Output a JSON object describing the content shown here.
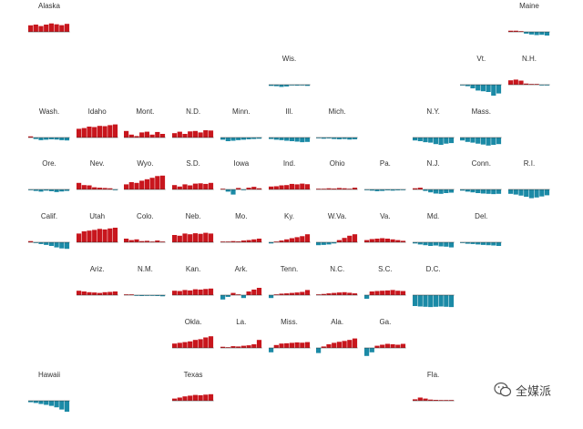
{
  "watermark": {
    "text": "全媒派",
    "icon": "wechat-icon"
  },
  "chart_data": {
    "type": "bar",
    "layout": "tile-grid small multiples",
    "colors": {
      "positive": "#c8161d",
      "negative": "#1b8aa6",
      "baseline": "#333333"
    },
    "states": [
      {
        "label": "Alaska",
        "row": 0,
        "col": 0,
        "values": [
          0.45,
          0.5,
          0.4,
          0.5,
          0.58,
          0.52,
          0.46,
          0.55
        ]
      },
      {
        "label": "Maine",
        "row": 0,
        "col": 10,
        "values": [
          0.08,
          0.08,
          0.02,
          -0.12,
          -0.18,
          -0.22,
          -0.2,
          -0.25
        ]
      },
      {
        "label": "Wis.",
        "row": 1,
        "col": 5,
        "values": [
          -0.08,
          -0.1,
          -0.15,
          -0.12,
          -0.05,
          -0.06,
          -0.04,
          -0.08
        ]
      },
      {
        "label": "Vt.",
        "row": 1,
        "col": 9,
        "values": [
          -0.05,
          -0.1,
          -0.25,
          -0.4,
          -0.45,
          -0.5,
          -0.75,
          -0.6
        ]
      },
      {
        "label": "N.H.",
        "row": 1,
        "col": 10,
        "values": [
          0.3,
          0.35,
          0.28,
          0.08,
          0.05,
          0.03,
          -0.02,
          -0.04
        ]
      },
      {
        "label": "Wash.",
        "row": 2,
        "col": 0,
        "values": [
          0.08,
          -0.1,
          -0.18,
          -0.15,
          -0.12,
          -0.14,
          -0.18,
          -0.2
        ]
      },
      {
        "label": "Idaho",
        "row": 2,
        "col": 1,
        "values": [
          0.6,
          0.65,
          0.75,
          0.72,
          0.8,
          0.78,
          0.85,
          0.9
        ]
      },
      {
        "label": "Mont.",
        "row": 2,
        "col": 2,
        "values": [
          0.45,
          0.2,
          0.1,
          0.35,
          0.4,
          0.2,
          0.38,
          0.25
        ]
      },
      {
        "label": "N.D.",
        "row": 2,
        "col": 3,
        "values": [
          0.3,
          0.4,
          0.25,
          0.42,
          0.45,
          0.35,
          0.5,
          0.48
        ]
      },
      {
        "label": "Minn.",
        "row": 2,
        "col": 4,
        "values": [
          -0.15,
          -0.25,
          -0.22,
          -0.18,
          -0.15,
          -0.12,
          -0.1,
          -0.08
        ]
      },
      {
        "label": "Ill.",
        "row": 2,
        "col": 5,
        "values": [
          -0.1,
          -0.15,
          -0.18,
          -0.22,
          -0.25,
          -0.28,
          -0.32,
          -0.3
        ]
      },
      {
        "label": "Mich.",
        "row": 2,
        "col": 6,
        "values": [
          -0.05,
          -0.08,
          -0.06,
          -0.1,
          -0.12,
          -0.1,
          -0.14,
          -0.12
        ]
      },
      {
        "label": "N.Y.",
        "row": 2,
        "col": 8,
        "values": [
          -0.2,
          -0.25,
          -0.32,
          -0.35,
          -0.45,
          -0.5,
          -0.42,
          -0.38
        ]
      },
      {
        "label": "Mass.",
        "row": 2,
        "col": 9,
        "values": [
          -0.2,
          -0.3,
          -0.35,
          -0.42,
          -0.48,
          -0.55,
          -0.5,
          -0.45
        ]
      },
      {
        "label": "Ore.",
        "row": 3,
        "col": 0,
        "values": [
          -0.05,
          -0.1,
          -0.15,
          -0.08,
          -0.12,
          -0.18,
          -0.14,
          -0.1
        ]
      },
      {
        "label": "Nev.",
        "row": 3,
        "col": 1,
        "values": [
          0.45,
          0.3,
          0.28,
          0.15,
          0.12,
          0.1,
          0.08,
          -0.05
        ]
      },
      {
        "label": "Wyo.",
        "row": 3,
        "col": 2,
        "values": [
          0.35,
          0.5,
          0.45,
          0.6,
          0.7,
          0.8,
          0.92,
          0.95
        ]
      },
      {
        "label": "S.D.",
        "row": 3,
        "col": 3,
        "values": [
          0.3,
          0.2,
          0.35,
          0.28,
          0.4,
          0.42,
          0.38,
          0.45
        ]
      },
      {
        "label": "Iowa",
        "row": 3,
        "col": 4,
        "values": [
          0.05,
          -0.15,
          -0.35,
          0.1,
          -0.05,
          0.12,
          0.18,
          0.08
        ]
      },
      {
        "label": "Ind.",
        "row": 3,
        "col": 5,
        "values": [
          0.2,
          0.22,
          0.28,
          0.3,
          0.38,
          0.35,
          0.4,
          0.36
        ]
      },
      {
        "label": "Ohio",
        "row": 3,
        "col": 6,
        "values": [
          0.02,
          0.05,
          0.08,
          0.06,
          0.1,
          0.08,
          0.05,
          0.12
        ]
      },
      {
        "label": "Pa.",
        "row": 3,
        "col": 7,
        "values": [
          -0.05,
          -0.08,
          -0.12,
          -0.1,
          -0.06,
          -0.08,
          -0.06,
          -0.05
        ]
      },
      {
        "label": "N.J.",
        "row": 3,
        "col": 8,
        "values": [
          0.08,
          0.12,
          -0.1,
          -0.2,
          -0.28,
          -0.3,
          -0.25,
          -0.22
        ]
      },
      {
        "label": "Conn.",
        "row": 3,
        "col": 9,
        "values": [
          -0.08,
          -0.15,
          -0.2,
          -0.25,
          -0.28,
          -0.3,
          -0.32,
          -0.3
        ]
      },
      {
        "label": "R.I.",
        "row": 3,
        "col": 10,
        "values": [
          -0.3,
          -0.35,
          -0.42,
          -0.5,
          -0.6,
          -0.55,
          -0.48,
          -0.4
        ]
      },
      {
        "label": "Calif.",
        "row": 4,
        "col": 0,
        "values": [
          0.08,
          -0.05,
          -0.12,
          -0.18,
          -0.25,
          -0.35,
          -0.42,
          -0.45
        ]
      },
      {
        "label": "Utah",
        "row": 4,
        "col": 1,
        "values": [
          0.6,
          0.75,
          0.8,
          0.85,
          0.92,
          0.88,
          0.95,
          1.0
        ]
      },
      {
        "label": "Colo.",
        "row": 4,
        "col": 2,
        "values": [
          0.25,
          0.15,
          0.2,
          0.08,
          0.1,
          0.05,
          0.12,
          0.02
        ]
      },
      {
        "label": "Neb.",
        "row": 4,
        "col": 3,
        "values": [
          0.5,
          0.45,
          0.6,
          0.55,
          0.62,
          0.58,
          0.65,
          0.6
        ]
      },
      {
        "label": "Mo.",
        "row": 4,
        "col": 4,
        "values": [
          0.02,
          0.05,
          0.08,
          0.06,
          0.12,
          0.15,
          0.2,
          0.25
        ]
      },
      {
        "label": "Ky.",
        "row": 4,
        "col": 5,
        "values": [
          -0.08,
          0.05,
          0.12,
          0.2,
          0.28,
          0.35,
          0.42,
          0.55
        ]
      },
      {
        "label": "W.Va.",
        "row": 4,
        "col": 6,
        "values": [
          -0.2,
          -0.18,
          -0.15,
          -0.08,
          0.15,
          0.3,
          0.45,
          0.55
        ]
      },
      {
        "label": "Va.",
        "row": 4,
        "col": 7,
        "values": [
          0.15,
          0.22,
          0.25,
          0.28,
          0.25,
          0.2,
          0.15,
          0.1
        ]
      },
      {
        "label": "Md.",
        "row": 4,
        "col": 8,
        "values": [
          -0.08,
          -0.15,
          -0.2,
          -0.25,
          -0.22,
          -0.28,
          -0.3,
          -0.35
        ]
      },
      {
        "label": "Del.",
        "row": 4,
        "col": 9,
        "values": [
          -0.05,
          -0.1,
          -0.12,
          -0.15,
          -0.18,
          -0.2,
          -0.22,
          -0.25
        ]
      },
      {
        "label": "Ariz.",
        "row": 5,
        "col": 1,
        "values": [
          0.3,
          0.25,
          0.2,
          0.18,
          0.15,
          0.2,
          0.22,
          0.25
        ]
      },
      {
        "label": "N.M.",
        "row": 5,
        "col": 2,
        "values": [
          0.05,
          0.02,
          -0.04,
          -0.06,
          -0.05,
          -0.04,
          -0.06,
          -0.08
        ]
      },
      {
        "label": "Kan.",
        "row": 5,
        "col": 3,
        "values": [
          0.3,
          0.28,
          0.35,
          0.32,
          0.4,
          0.38,
          0.42,
          0.45
        ]
      },
      {
        "label": "Ark.",
        "row": 5,
        "col": 4,
        "values": [
          -0.3,
          -0.12,
          0.15,
          0.05,
          -0.2,
          0.25,
          0.38,
          0.5
        ]
      },
      {
        "label": "Tenn.",
        "row": 5,
        "col": 5,
        "values": [
          -0.2,
          0.05,
          0.1,
          0.12,
          0.15,
          0.18,
          0.22,
          0.35
        ]
      },
      {
        "label": "N.C.",
        "row": 5,
        "col": 6,
        "values": [
          0.05,
          0.08,
          0.12,
          0.15,
          0.18,
          0.2,
          0.16,
          0.12
        ]
      },
      {
        "label": "S.C.",
        "row": 5,
        "col": 7,
        "values": [
          -0.25,
          0.25,
          0.28,
          0.3,
          0.32,
          0.35,
          0.3,
          0.28
        ]
      },
      {
        "label": "D.C.",
        "row": 5,
        "col": 8,
        "values": [
          -0.75,
          -0.78,
          -0.8,
          -0.82,
          -0.8,
          -0.78,
          -0.8,
          -0.82
        ]
      },
      {
        "label": "Okla.",
        "row": 6,
        "col": 3,
        "values": [
          0.3,
          0.35,
          0.4,
          0.45,
          0.55,
          0.6,
          0.72,
          0.8
        ]
      },
      {
        "label": "La.",
        "row": 6,
        "col": 4,
        "values": [
          0.08,
          0.05,
          0.12,
          0.1,
          0.15,
          0.18,
          0.25,
          0.55
        ]
      },
      {
        "label": "Miss.",
        "row": 6,
        "col": 5,
        "values": [
          -0.3,
          0.2,
          0.3,
          0.32,
          0.35,
          0.38,
          0.36,
          0.4
        ]
      },
      {
        "label": "Ala.",
        "row": 6,
        "col": 6,
        "values": [
          -0.35,
          0.1,
          0.25,
          0.35,
          0.42,
          0.48,
          0.55,
          0.65
        ]
      },
      {
        "label": "Ga.",
        "row": 6,
        "col": 7,
        "values": [
          -0.55,
          -0.3,
          0.15,
          0.22,
          0.28,
          0.25,
          0.22,
          0.28
        ]
      },
      {
        "label": "Hawaii",
        "row": 7,
        "col": 0,
        "values": [
          -0.1,
          -0.15,
          -0.22,
          -0.28,
          -0.35,
          -0.45,
          -0.6,
          -0.75
        ]
      },
      {
        "label": "Texas",
        "row": 7,
        "col": 3,
        "values": [
          0.15,
          0.22,
          0.3,
          0.35,
          0.4,
          0.38,
          0.42,
          0.45
        ]
      },
      {
        "label": "Fla.",
        "row": 7,
        "col": 8,
        "values": [
          0.1,
          0.22,
          0.15,
          0.08,
          0.06,
          0.04,
          0.05,
          0.05
        ]
      }
    ]
  }
}
